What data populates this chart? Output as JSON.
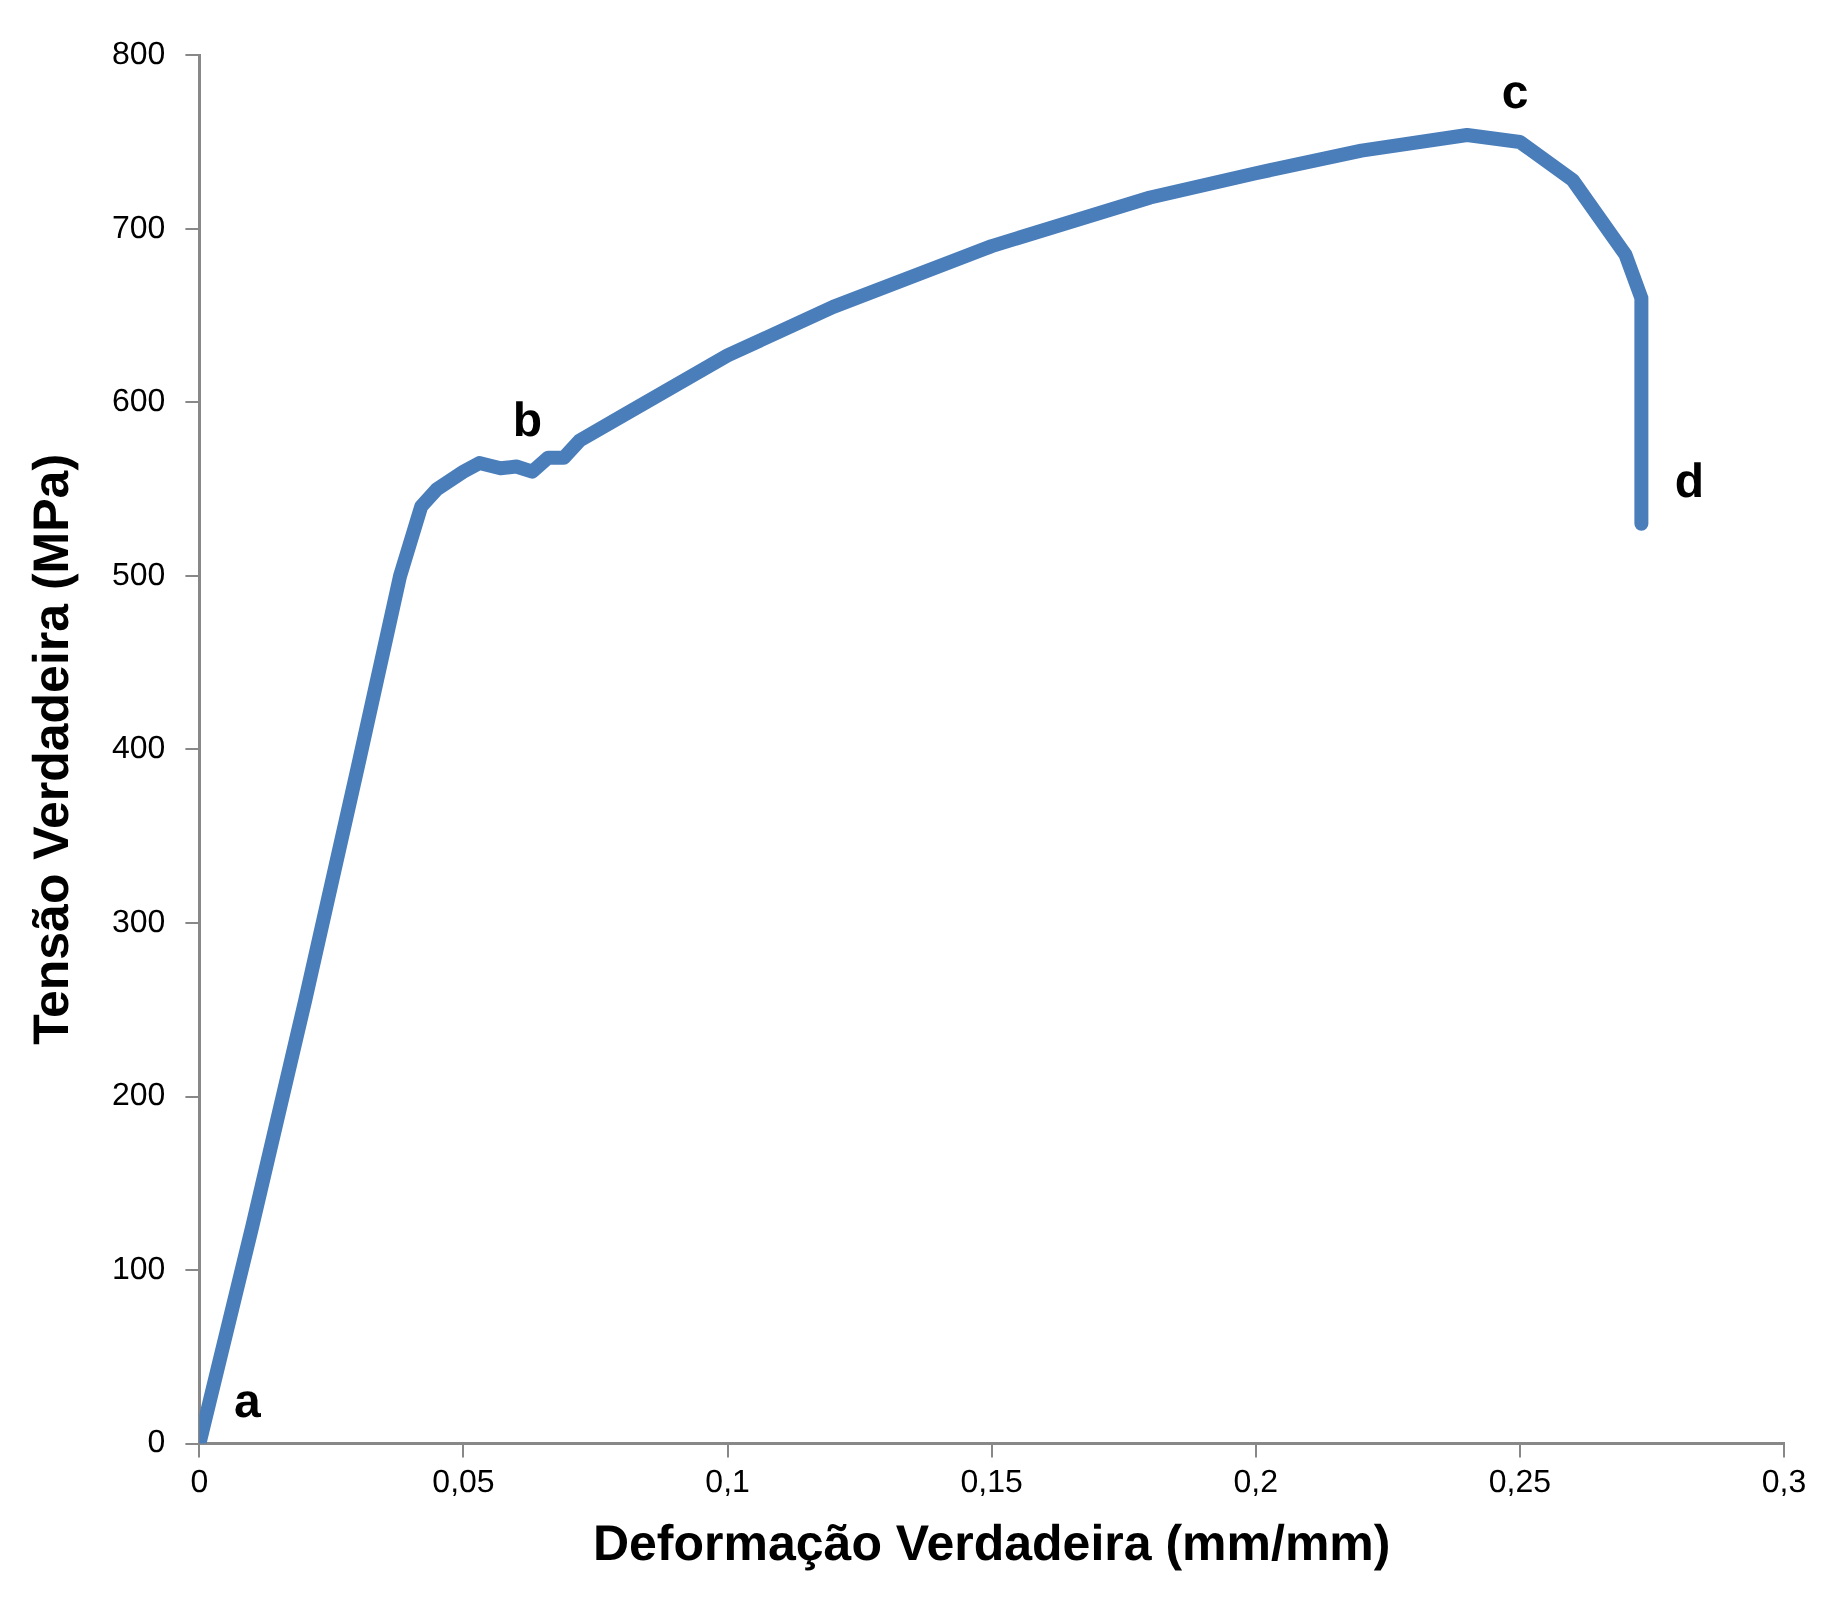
{
  "chart_data": {
    "type": "line",
    "xlabel": "Deformação Verdadeira (mm/mm)",
    "ylabel": "Tensão Verdadeira (MPa)",
    "x": [
      0,
      0.01,
      0.02,
      0.03,
      0.038,
      0.042,
      0.045,
      0.05,
      0.053,
      0.057,
      0.06,
      0.063,
      0.066,
      0.069,
      0.072,
      0.08,
      0.1,
      0.12,
      0.15,
      0.18,
      0.2,
      0.22,
      0.24,
      0.25,
      0.26,
      0.27,
      0.273,
      0.273
    ],
    "series": [
      {
        "color": "#4a7ebb",
        "values": [
          0,
          125,
          255,
          390,
          500,
          540,
          550,
          560,
          565,
          562,
          563,
          560,
          568,
          568,
          578,
          592,
          627,
          655,
          690,
          718,
          732,
          745,
          754,
          750,
          728,
          685,
          660,
          530
        ]
      }
    ],
    "xlim": [
      0,
      0.3
    ],
    "xticks": [
      0,
      {
        "value": 0.05,
        "label": "0,05"
      },
      {
        "value": 0.1,
        "label": "0,1"
      },
      {
        "value": 0.15,
        "label": "0,15"
      },
      {
        "value": 0.2,
        "label": "0,2"
      },
      {
        "value": 0.25,
        "label": "0,25"
      },
      {
        "value": 0.3,
        "label": "0,3"
      }
    ],
    "ylim": [
      0,
      800
    ],
    "yticks": [
      0,
      100,
      200,
      300,
      400,
      500,
      600,
      700,
      800
    ],
    "grid": false,
    "legend": false,
    "marker": "none",
    "line_style": "solid",
    "annotations": [
      {
        "text": "a",
        "x": 0,
        "y": 0
      },
      {
        "text": "b",
        "x": 0.053,
        "y": 565
      },
      {
        "text": "c",
        "x": 0.24,
        "y": 754
      },
      {
        "text": "d",
        "x": 0.273,
        "y": 530
      }
    ]
  }
}
